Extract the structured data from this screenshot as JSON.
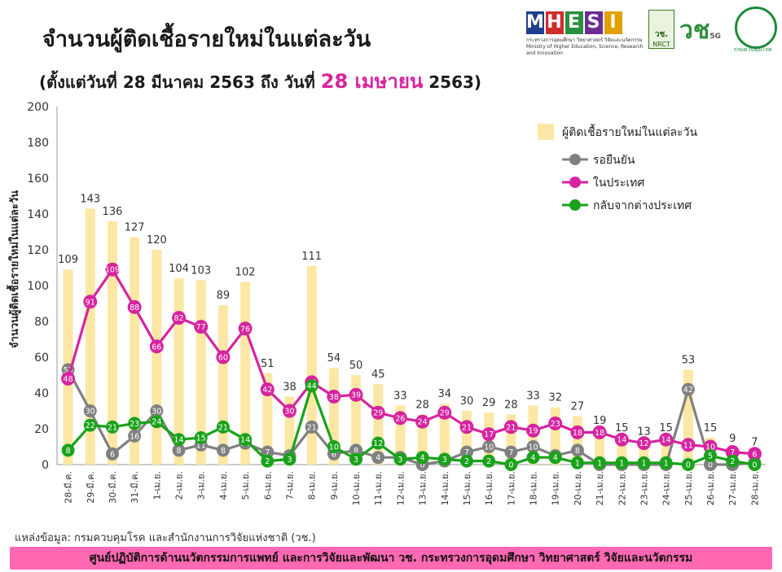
{
  "header": {
    "title": "จำนวนผู้ติดเชื้อรายใหม่ในแต่ละวัน",
    "subtitle_prefix": "(ตั้งแต่วันที่ 28 มีนาคม 2563 ถึง วันที่",
    "subtitle_highlight": "28 เมษายน",
    "subtitle_suffix": "2563)"
  },
  "logos": {
    "mhesi_letters": [
      "M",
      "H",
      "E",
      "S",
      "I"
    ],
    "mhesi_colors": [
      "#1f3f8f",
      "#d12c2c",
      "#2a8f3e",
      "#6a2c91",
      "#e0a000"
    ],
    "mhesi_caption_th": "กระทรวงการอุดมศึกษา วิทยาศาสตร์ วิจัยและนวัตกรรม",
    "mhesi_caption_en": "Ministry of Higher Education, Science, Research and Innovation",
    "nrct_label": "วช.",
    "nrct_sub": "NRCT",
    "fiveg_text": "วช",
    "fiveg_badge": "5G",
    "ddc_label": "กรมควบคุมโรค"
  },
  "colors": {
    "bar": "#fde7a4",
    "pending": "#808080",
    "local": "#d6249f",
    "imported": "#1aa21a",
    "footer_bg": "#ff69b4"
  },
  "chart_data": {
    "type": "bar",
    "title": "จำนวนผู้ติดเชื้อรายใหม่ในแต่ละวัน",
    "ylabel": "จำนวนผู้ติดเชื้อรายใหม่ในแต่ละวัน",
    "xlabel": "",
    "ylim": [
      0,
      200
    ],
    "yticks": [
      0,
      20,
      40,
      60,
      80,
      100,
      120,
      140,
      160,
      180,
      200
    ],
    "grid": false,
    "legend_position": "top-right",
    "categories": [
      "28-มี.ค.",
      "29-มี.ค.",
      "30-มี.ค.",
      "31-มี.ค.",
      "1-เม.ย.",
      "2-เม.ย.",
      "3-เม.ย.",
      "4-เม.ย.",
      "5-เม.ย.",
      "6-เม.ย.",
      "7-เม.ย.",
      "8-เม.ย.",
      "9-เม.ย.",
      "10-เม.ย.",
      "11-เม.ย.",
      "12-เม.ย.",
      "13-เม.ย.",
      "14-เม.ย.",
      "15-เม.ย.",
      "16-เม.ย.",
      "17-เม.ย.",
      "18-เม.ย.",
      "19-เม.ย.",
      "20-เม.ย.",
      "21-เม.ย.",
      "22-เม.ย.",
      "23-เม.ย.",
      "24-เม.ย.",
      "25-เม.ย.",
      "26-เม.ย.",
      "27-เม.ย.",
      "28-เม.ย."
    ],
    "series": [
      {
        "name": "ผู้ติดเชื้อรายใหม่ในแต่ละวัน",
        "type": "bar",
        "values": [
          109,
          143,
          136,
          127,
          120,
          104,
          103,
          89,
          102,
          51,
          38,
          111,
          54,
          50,
          45,
          33,
          28,
          34,
          30,
          29,
          28,
          33,
          32,
          27,
          19,
          15,
          13,
          15,
          53,
          15,
          9,
          7
        ]
      },
      {
        "name": "รอยืนยัน",
        "type": "line",
        "values": [
          53,
          30,
          6,
          16,
          30,
          8,
          11,
          8,
          12,
          7,
          5,
          21,
          6,
          8,
          4,
          4,
          0,
          2,
          7,
          10,
          7,
          10,
          5,
          8,
          0,
          0,
          0,
          0,
          42,
          0,
          0,
          1
        ]
      },
      {
        "name": "ในประเทศ",
        "type": "line",
        "values": [
          48,
          91,
          109,
          88,
          66,
          82,
          77,
          60,
          76,
          42,
          30,
          46,
          38,
          39,
          29,
          26,
          24,
          29,
          21,
          17,
          21,
          19,
          23,
          18,
          18,
          14,
          12,
          14,
          11,
          10,
          7,
          6
        ]
      },
      {
        "name": "กลับจากต่างประเทศ",
        "type": "line",
        "values": [
          8,
          22,
          21,
          23,
          24,
          14,
          15,
          21,
          14,
          2,
          3,
          44,
          10,
          3,
          12,
          3,
          4,
          3,
          2,
          2,
          0,
          4,
          4,
          1,
          1,
          1,
          1,
          1,
          0,
          5,
          2,
          0
        ]
      }
    ]
  },
  "footer": {
    "source": "แหล่งข้อมูล: กรมควบคุมโรค และสำนักงานการวิจัยแห่งชาติ (วช.)",
    "banner": "ศูนย์ปฏิบัติการด้านนวัตกรรมการแพทย์ และการวิจัยและพัฒนา   วช.   กระทรวงการอุดมศึกษา วิทยาศาสตร์ วิจัยและนวัตกรรม"
  }
}
